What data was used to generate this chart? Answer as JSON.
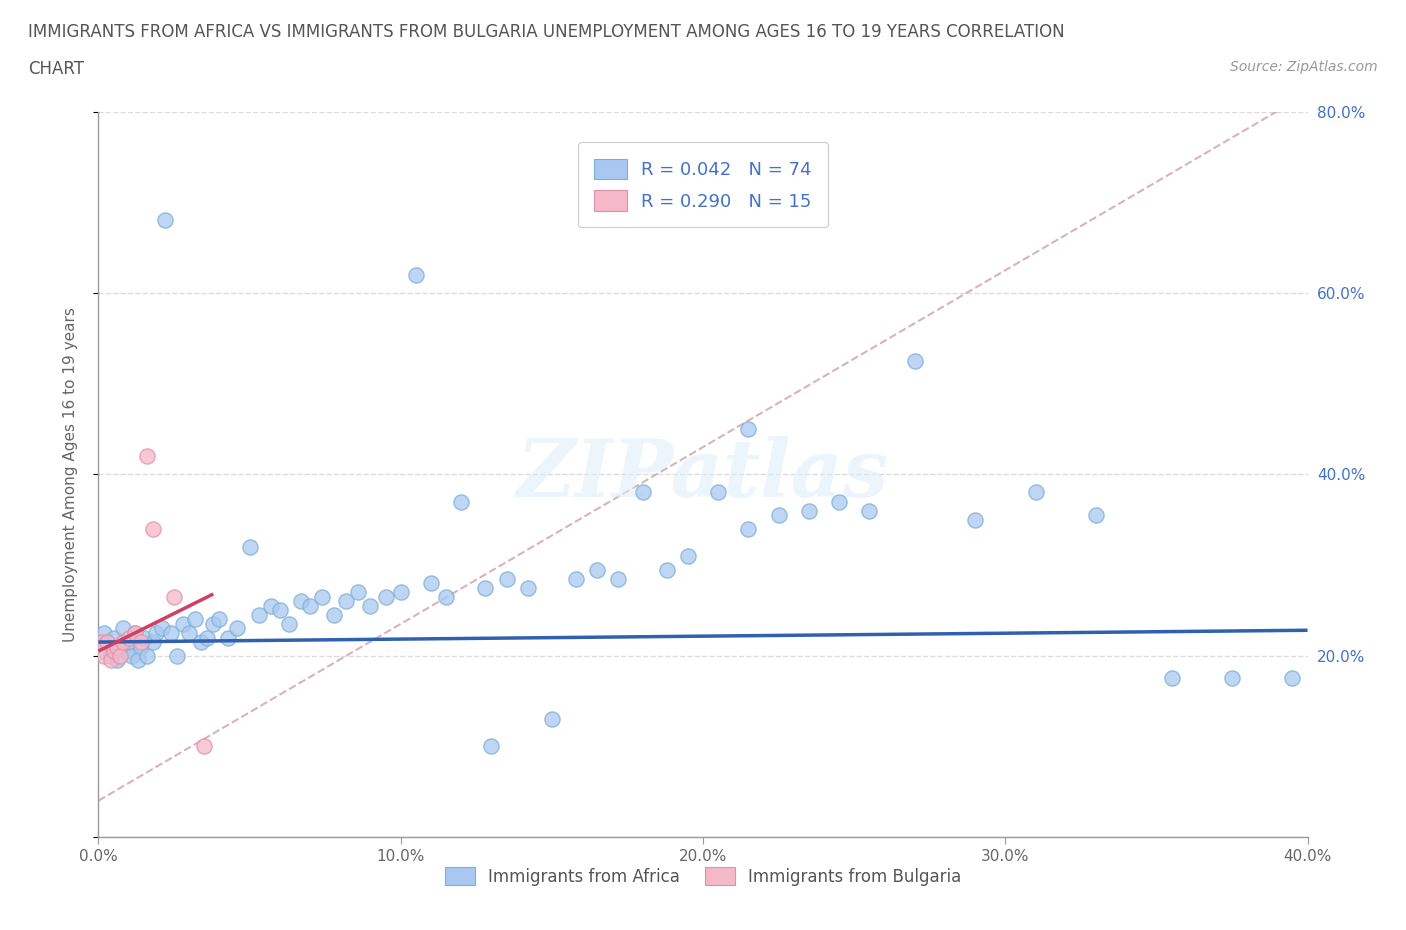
{
  "title_line1": "IMMIGRANTS FROM AFRICA VS IMMIGRANTS FROM BULGARIA UNEMPLOYMENT AMONG AGES 16 TO 19 YEARS CORRELATION",
  "title_line2": "CHART",
  "source_text": "Source: ZipAtlas.com",
  "ylabel": "Unemployment Among Ages 16 to 19 years",
  "africa_R": 0.042,
  "africa_N": 74,
  "bulgaria_R": 0.29,
  "bulgaria_N": 15,
  "africa_color": "#a8c8f0",
  "africa_edge_color": "#7bafd4",
  "bulgaria_color": "#f5b8c8",
  "bulgaria_edge_color": "#e090a8",
  "africa_line_color": "#3060b0",
  "bulgaria_line_color": "#d04060",
  "diag_line_color": "#d0a0a8",
  "xlim": [
    0.0,
    0.4
  ],
  "ylim": [
    0.0,
    0.8
  ],
  "xticks": [
    0.0,
    0.1,
    0.2,
    0.3,
    0.4
  ],
  "yticks": [
    0.0,
    0.2,
    0.4,
    0.6,
    0.8
  ],
  "background_color": "#ffffff",
  "watermark": "ZIPatlas",
  "legend_africa": "Immigrants from Africa",
  "legend_bulgaria": "Immigrants from Bulgaria",
  "africa_x": [
    0.001,
    0.002,
    0.003,
    0.004,
    0.005,
    0.006,
    0.007,
    0.008,
    0.009,
    0.01,
    0.011,
    0.012,
    0.013,
    0.014,
    0.015,
    0.016,
    0.018,
    0.019,
    0.021,
    0.022,
    0.024,
    0.026,
    0.028,
    0.03,
    0.032,
    0.034,
    0.036,
    0.038,
    0.04,
    0.043,
    0.046,
    0.05,
    0.053,
    0.057,
    0.06,
    0.063,
    0.067,
    0.07,
    0.074,
    0.078,
    0.082,
    0.086,
    0.09,
    0.095,
    0.1,
    0.105,
    0.11,
    0.115,
    0.12,
    0.128,
    0.135,
    0.142,
    0.15,
    0.158,
    0.165,
    0.172,
    0.18,
    0.188,
    0.195,
    0.205,
    0.215,
    0.225,
    0.235,
    0.245,
    0.255,
    0.27,
    0.29,
    0.31,
    0.33,
    0.355,
    0.375,
    0.395,
    0.215,
    0.13
  ],
  "africa_y": [
    0.205,
    0.225,
    0.215,
    0.2,
    0.22,
    0.195,
    0.21,
    0.23,
    0.205,
    0.215,
    0.2,
    0.225,
    0.195,
    0.21,
    0.22,
    0.2,
    0.215,
    0.225,
    0.23,
    0.68,
    0.225,
    0.2,
    0.235,
    0.225,
    0.24,
    0.215,
    0.22,
    0.235,
    0.24,
    0.22,
    0.23,
    0.32,
    0.245,
    0.255,
    0.25,
    0.235,
    0.26,
    0.255,
    0.265,
    0.245,
    0.26,
    0.27,
    0.255,
    0.265,
    0.27,
    0.62,
    0.28,
    0.265,
    0.37,
    0.275,
    0.285,
    0.275,
    0.13,
    0.285,
    0.295,
    0.285,
    0.38,
    0.295,
    0.31,
    0.38,
    0.34,
    0.355,
    0.36,
    0.37,
    0.36,
    0.525,
    0.35,
    0.38,
    0.355,
    0.175,
    0.175,
    0.175,
    0.45,
    0.1
  ],
  "bulgaria_x": [
    0.001,
    0.002,
    0.003,
    0.004,
    0.005,
    0.006,
    0.007,
    0.008,
    0.01,
    0.012,
    0.014,
    0.016,
    0.018,
    0.025,
    0.035
  ],
  "bulgaria_y": [
    0.215,
    0.2,
    0.215,
    0.195,
    0.205,
    0.21,
    0.2,
    0.215,
    0.22,
    0.225,
    0.215,
    0.42,
    0.34,
    0.265,
    0.1
  ]
}
